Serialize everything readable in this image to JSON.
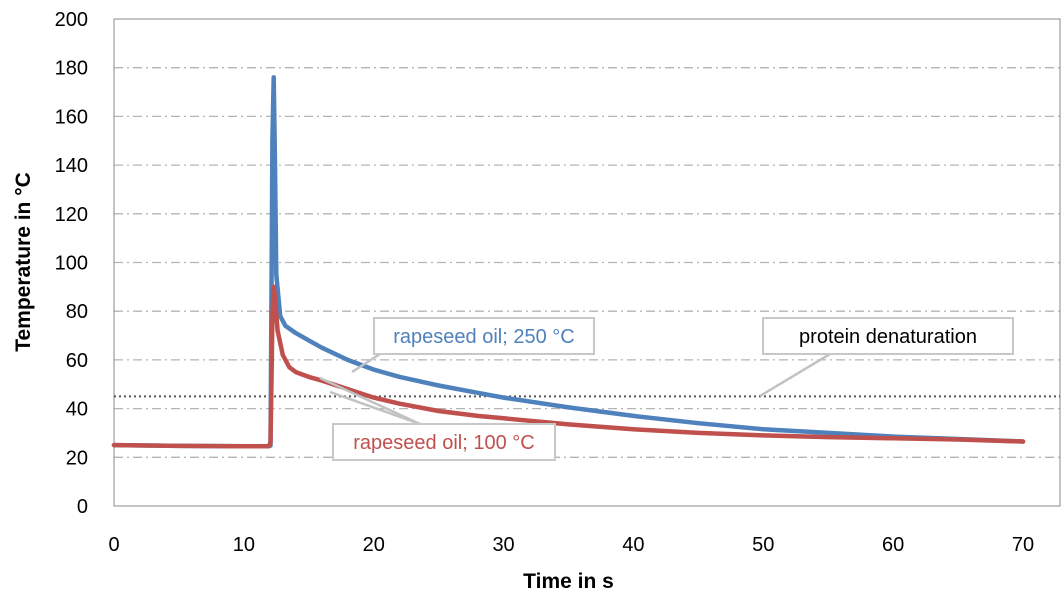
{
  "chart_data": {
    "type": "line",
    "xlabel": "Time in s",
    "ylabel": "Temperature in °C",
    "xlim": [
      0,
      70
    ],
    "ylim": [
      0,
      200
    ],
    "x_ticks": [
      "0",
      "10",
      "20",
      "30",
      "40",
      "50",
      "60",
      "70"
    ],
    "y_ticks": [
      "0",
      "20",
      "40",
      "60",
      "80",
      "100",
      "120",
      "140",
      "160",
      "180",
      "200"
    ],
    "grid": "horizontal dashed",
    "series": [
      {
        "name": "rapeseed oil; 250 °C",
        "color": "#4F81BD",
        "x": [
          0,
          5,
          10,
          11.9,
          12.05,
          12.15,
          12.2,
          12.3,
          12.4,
          12.5,
          12.8,
          13.2,
          14,
          15,
          16,
          18,
          20,
          22,
          25,
          28,
          30,
          35,
          40,
          45,
          50,
          55,
          60,
          65,
          70
        ],
        "y": [
          25,
          24.7,
          24.5,
          24.5,
          24.8,
          108,
          150,
          176,
          140,
          95,
          78,
          74,
          71,
          68,
          65,
          60,
          56,
          53,
          49.5,
          46.5,
          44.5,
          40.5,
          37,
          34,
          31.5,
          30,
          28.5,
          27.5,
          26.5
        ]
      },
      {
        "name": "rapeseed oil; 100 °C",
        "color": "#C0504D",
        "x": [
          0,
          5,
          10,
          11.9,
          12.05,
          12.15,
          12.2,
          12.3,
          12.4,
          12.6,
          13,
          13.5,
          14,
          15,
          16,
          18,
          20,
          22,
          25,
          28,
          30,
          35,
          40,
          45,
          50,
          55,
          60,
          65,
          70
        ],
        "y": [
          25,
          24.7,
          24.5,
          24.5,
          26,
          60,
          78,
          90,
          85,
          72,
          62,
          57,
          55,
          53,
          51.5,
          48,
          44.5,
          42,
          39,
          37,
          36,
          33.5,
          31.5,
          30,
          29,
          28.3,
          27.8,
          27.3,
          26.5
        ]
      }
    ],
    "reference_line": {
      "label": "protein denaturation",
      "y": 45,
      "style": "dotted"
    },
    "annotations": [
      {
        "text": "rapeseed oil; 250 °C",
        "color": "#4F81BD"
      },
      {
        "text": "rapeseed oil; 100 °C",
        "color": "#C0504D"
      },
      {
        "text": "protein denaturation",
        "color": "#000000"
      }
    ]
  }
}
